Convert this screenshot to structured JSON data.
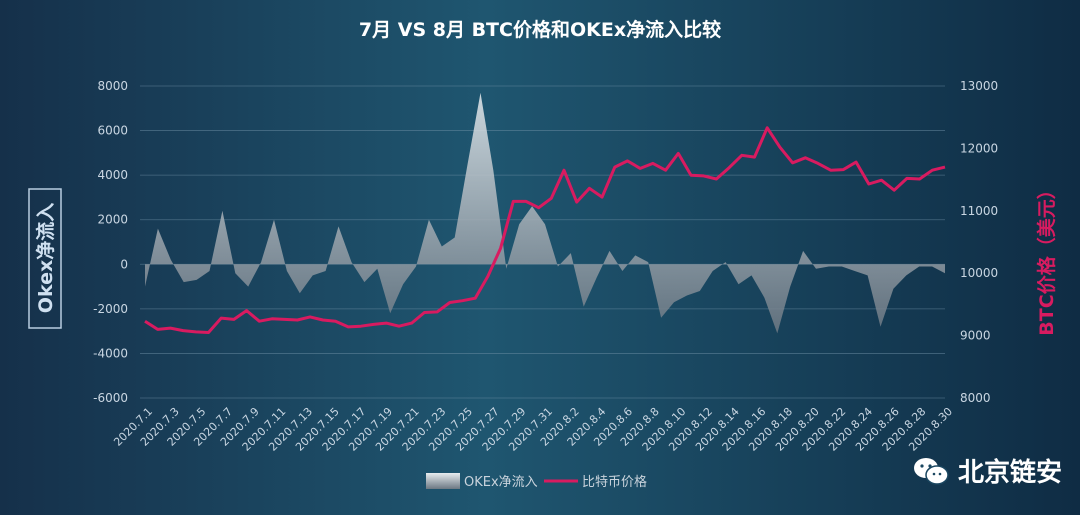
{
  "chart_data": {
    "type": "area+line",
    "title": "7月 VS 8月 BTC价格和OKEx净流入比较",
    "ylabel_left": "Okex净流入",
    "ylabel_right": "BTC价格（美元）",
    "y_left_ticks": [
      "8000",
      "6000",
      "4000",
      "2000",
      "0",
      "-2000",
      "-4000",
      "-6000"
    ],
    "y_right_ticks": [
      "13000",
      "12000",
      "11000",
      "10000",
      "9000",
      "8000"
    ],
    "ylim_left": [
      -6000,
      8000
    ],
    "ylim_right": [
      8000,
      13000
    ],
    "x_tick_labels": [
      "2020.7.1",
      "2020.7.3",
      "2020.7.5",
      "2020.7.7",
      "2020.7.9",
      "2020.7.11",
      "2020.7.13",
      "2020.7.15",
      "2020.7.17",
      "2020.7.19",
      "2020.7.21",
      "2020.7.23",
      "2020.7.25",
      "2020.7.27",
      "2020.7.29",
      "2020.7.31",
      "2020.8.2",
      "2020.8.4",
      "2020.8.6",
      "2020.8.8",
      "2020.8.10",
      "2020.8.12",
      "2020.8.14",
      "2020.8.16",
      "2020.8.18",
      "2020.8.20",
      "2020.8.22",
      "2020.8.24",
      "2020.8.26",
      "2020.8.28",
      "2020.8.30"
    ],
    "series": [
      {
        "name": "OKEx净流入",
        "kind": "area",
        "axis": "left",
        "color": "#b8bec6",
        "values": [
          -1000,
          1600,
          200,
          -800,
          -700,
          -300,
          2400,
          -400,
          -1000,
          100,
          2000,
          -300,
          -1300,
          -500,
          -300,
          1700,
          100,
          -800,
          -200,
          -2200,
          -900,
          -100,
          2000,
          800,
          1200,
          4500,
          7700,
          4200,
          -200,
          1800,
          2600,
          1800,
          -100,
          500,
          -1900,
          -600,
          600,
          -300,
          400,
          100,
          -2400,
          -1700,
          -1400,
          -1200,
          -300,
          100,
          -900,
          -500,
          -1500,
          -3100,
          -1000,
          600,
          -200,
          -100,
          -100,
          -300,
          -500,
          -2800,
          -1100,
          -500,
          -100,
          -100,
          -400
        ]
      },
      {
        "name": "比特币价格",
        "kind": "line",
        "axis": "right",
        "color": "#d81b60",
        "values": [
          9230,
          9100,
          9120,
          9080,
          9060,
          9050,
          9280,
          9260,
          9400,
          9230,
          9270,
          9260,
          9250,
          9300,
          9250,
          9230,
          9140,
          9150,
          9180,
          9200,
          9150,
          9200,
          9370,
          9380,
          9530,
          9560,
          9600,
          9950,
          10400,
          11150,
          11150,
          11050,
          11200,
          11650,
          11140,
          11360,
          11220,
          11700,
          11800,
          11680,
          11760,
          11650,
          11920,
          11570,
          11560,
          11510,
          11690,
          11890,
          11860,
          12330,
          12020,
          11770,
          11850,
          11760,
          11650,
          11660,
          11780,
          11430,
          11490,
          11330,
          11520,
          11510,
          11650,
          11700
        ]
      }
    ],
    "legend": [
      "OKEx净流入",
      "比特币价格"
    ],
    "legend_position": "bottom"
  },
  "watermark": {
    "text": "北京链安"
  }
}
